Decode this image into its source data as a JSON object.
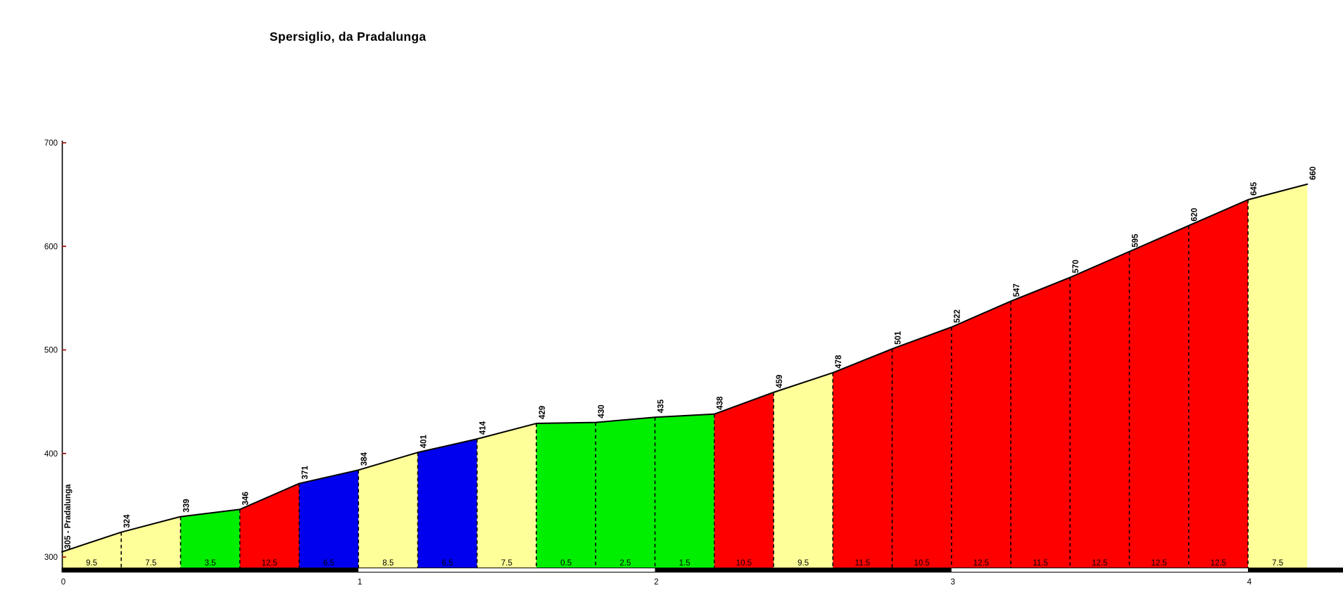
{
  "title": "Spersiglio, da Pradalunga",
  "chart_data": {
    "type": "area",
    "title": "Spersiglio, da Pradalunga",
    "subtitle": "",
    "x_unit": "km",
    "y_unit": "m",
    "xlim": [
      0,
      4.2
    ],
    "ylim": [
      300,
      700
    ],
    "y_ticks": [
      300,
      400,
      500,
      600,
      700
    ],
    "x_ticks": [
      0,
      1,
      2,
      3,
      4
    ],
    "grid": false,
    "legend_position": "none",
    "start_label": "305 - Pradalunga",
    "start_elevation": 305,
    "end_elevation": 660,
    "segment_length_km": 0.2,
    "points": [
      {
        "km": 0.0,
        "ele": 305
      },
      {
        "km": 0.2,
        "ele": 324
      },
      {
        "km": 0.4,
        "ele": 339
      },
      {
        "km": 0.6,
        "ele": 346
      },
      {
        "km": 0.8,
        "ele": 371
      },
      {
        "km": 1.0,
        "ele": 384
      },
      {
        "km": 1.2,
        "ele": 401
      },
      {
        "km": 1.4,
        "ele": 414
      },
      {
        "km": 1.6,
        "ele": 429
      },
      {
        "km": 1.8,
        "ele": 430
      },
      {
        "km": 2.0,
        "ele": 435
      },
      {
        "km": 2.2,
        "ele": 438
      },
      {
        "km": 2.4,
        "ele": 459
      },
      {
        "km": 2.6,
        "ele": 478
      },
      {
        "km": 2.8,
        "ele": 501
      },
      {
        "km": 3.0,
        "ele": 522
      },
      {
        "km": 3.2,
        "ele": 547
      },
      {
        "km": 3.4,
        "ele": 570
      },
      {
        "km": 3.6,
        "ele": 595
      },
      {
        "km": 3.8,
        "ele": 620
      },
      {
        "km": 4.0,
        "ele": 645
      },
      {
        "km": 4.2,
        "ele": 660
      }
    ],
    "segments": [
      {
        "from_km": 0.0,
        "to_km": 0.2,
        "gradient": "9.5",
        "color": "yellow"
      },
      {
        "from_km": 0.2,
        "to_km": 0.4,
        "gradient": "7.5",
        "color": "yellow"
      },
      {
        "from_km": 0.4,
        "to_km": 0.6,
        "gradient": "3.5",
        "color": "green"
      },
      {
        "from_km": 0.6,
        "to_km": 0.8,
        "gradient": "12.5",
        "color": "red"
      },
      {
        "from_km": 0.8,
        "to_km": 1.0,
        "gradient": "6.5",
        "color": "blue"
      },
      {
        "from_km": 1.0,
        "to_km": 1.2,
        "gradient": "8.5",
        "color": "yellow"
      },
      {
        "from_km": 1.2,
        "to_km": 1.4,
        "gradient": "6.5",
        "color": "blue"
      },
      {
        "from_km": 1.4,
        "to_km": 1.6,
        "gradient": "7.5",
        "color": "yellow"
      },
      {
        "from_km": 1.6,
        "to_km": 1.8,
        "gradient": "0.5",
        "color": "green"
      },
      {
        "from_km": 1.8,
        "to_km": 2.0,
        "gradient": "2.5",
        "color": "green"
      },
      {
        "from_km": 2.0,
        "to_km": 2.2,
        "gradient": "1.5",
        "color": "green"
      },
      {
        "from_km": 2.2,
        "to_km": 2.4,
        "gradient": "10.5",
        "color": "red"
      },
      {
        "from_km": 2.4,
        "to_km": 2.6,
        "gradient": "9.5",
        "color": "yellow"
      },
      {
        "from_km": 2.6,
        "to_km": 2.8,
        "gradient": "11.5",
        "color": "red"
      },
      {
        "from_km": 2.8,
        "to_km": 3.0,
        "gradient": "10.5",
        "color": "red"
      },
      {
        "from_km": 3.0,
        "to_km": 3.2,
        "gradient": "12.5",
        "color": "red"
      },
      {
        "from_km": 3.2,
        "to_km": 3.4,
        "gradient": "11.5",
        "color": "red"
      },
      {
        "from_km": 3.4,
        "to_km": 3.6,
        "gradient": "12.5",
        "color": "red"
      },
      {
        "from_km": 3.6,
        "to_km": 3.8,
        "gradient": "12.5",
        "color": "red"
      },
      {
        "from_km": 3.8,
        "to_km": 4.0,
        "gradient": "12.5",
        "color": "red"
      },
      {
        "from_km": 4.0,
        "to_km": 4.2,
        "gradient": "7.5",
        "color": "yellow"
      }
    ],
    "colors": {
      "yellow": "#FFFF99",
      "green": "#00EE00",
      "red": "#FF0000",
      "blue": "#0000EE",
      "profile_line": "#000000",
      "tick": "#990000",
      "km_bar_odd": "#000000",
      "km_bar_even": "#FFFFFF"
    }
  }
}
